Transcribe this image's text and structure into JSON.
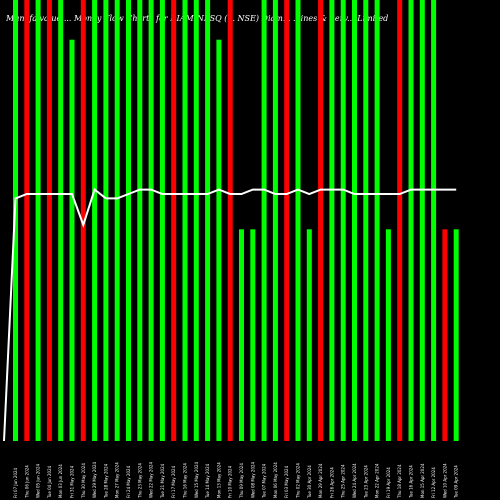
{
  "chart_data": {
    "type": "bar",
    "title": "Munafa value: 90 as on 08 Sun Dec 2024. Money Flow Charts for DIAMINESQ (Diamines & Chemicals Limited) NSE stock exchange",
    "title_display": "Munafa value ... Money Flow Charts for DIAMINESQ (... NSE) Diam... ...ines & Serv... Limited",
    "xlabel": "",
    "ylabel": "",
    "ylim": [
      0,
      100
    ],
    "grid": false,
    "legend": "none",
    "colors": {
      "up": "#00ff00",
      "down": "#ff0000",
      "line": "#ffffff",
      "background": "#000000"
    },
    "categories": [
      "Fri 07 Jun 2024",
      "Thu 06 Jun 2024",
      "Wed 05 Jun 2024",
      "Tue 04 Jun 2024",
      "Mon 03 Jun 2024",
      "Fri 31 May 2024",
      "Thu 30 May 2024",
      "Wed 29 May 2024",
      "Tue 28 May 2024",
      "Mon 27 May 2024",
      "Fri 24 May 2024",
      "Thu 23 May 2024",
      "Wed 22 May 2024",
      "Tue 21 May 2024",
      "Fri 17 May 2024",
      "Thu 16 May 2024",
      "Wed 15 May 2024",
      "Tue 14 May 2024",
      "Mon 13 May 2024",
      "Fri 10 May 2024",
      "Thu 09 May 2024",
      "Wed 08 May 2024",
      "Tue 07 May 2024",
      "Mon 06 May 2024",
      "Fri 03 May 2024",
      "Thu 02 May 2024",
      "Tue 30 Apr 2024",
      "Mon 29 Apr 2024",
      "Fri 26 Apr 2024",
      "Thu 25 Apr 2024",
      "Wed 24 Apr 2024",
      "Tue 23 Apr 2024",
      "Mon 22 Apr 2024",
      "Fri 19 Apr 2024",
      "Thu 18 Apr 2024",
      "Tue 16 Apr 2024",
      "Mon 15 Apr 2024",
      "Fri 12 Apr 2024",
      "Wed 10 Apr 2024",
      "Tue 09 Apr 2024"
    ],
    "tick_labels": [
      "Fri 07 Jun 2024",
      "Thu 06 Jun 2024",
      "Wed 05 Jun 2024",
      "Tue 04 Jun 2024",
      "Mon 03 Jun 2024",
      "Fri 31 May 2024",
      "Thu 30 May 2024",
      "Wed 29 May 2024",
      "Tue 28 May 2024",
      "Mon 27 May 2024",
      "Fri 24 May 2024",
      "Thu 23 May 2024",
      "Wed 22 May 2024",
      "Tue 21 May 2024",
      "Fri 17 May 2024",
      "Thu 16 May 2024",
      "Wed 15 May 2024",
      "Tue 14 May 2024",
      "Mon 13 May 2024",
      "Fri 10 May 2024",
      "Thu 09 May 2024",
      "Wed 08 May 2024",
      "Tue 07 May 2024",
      "Mon 06 May 2024",
      "Fri 03 May 2024",
      "Thu 02 May 2024",
      "Tue 30 Apr 2024",
      "Mon 29 Apr 2024",
      "Fri 26 Apr 2024",
      "Thu 25 Apr 2024",
      "Wed 24 Apr 2024",
      "Tue 23 Apr 2024",
      "Mon 22 Apr 2024",
      "Fri 19 Apr 2024",
      "Thu 18 Apr 2024",
      "Tue 16 Apr 2024",
      "Mon 15 Apr 2024",
      "Fri 12 Apr 2024",
      "Wed 10 Apr 2024",
      "Tue 09 Apr 2024"
    ],
    "series": [
      {
        "kind": "bars",
        "values": [
          100,
          100,
          100,
          100,
          100,
          91,
          100,
          100,
          100,
          100,
          100,
          100,
          100,
          100,
          100,
          100,
          100,
          100,
          91,
          100,
          100,
          100,
          100,
          100,
          100,
          100,
          100,
          100,
          100,
          100,
          100,
          100,
          100,
          100,
          100,
          100,
          100,
          100,
          100,
          100
        ],
        "direction": [
          "up",
          "down",
          "up",
          "down",
          "up",
          "up",
          "down",
          "up",
          "up",
          "up",
          "up",
          "up",
          "up",
          "up",
          "down",
          "up",
          "up",
          "up",
          "up",
          "down",
          "up",
          "up",
          "up",
          "up",
          "down",
          "up",
          "up",
          "down",
          "up",
          "up",
          "up",
          "up",
          "up",
          "up",
          "down",
          "up",
          "up",
          "up",
          "down",
          "up"
        ]
      },
      {
        "kind": "line",
        "values": [
          55,
          56,
          56,
          56,
          56,
          56,
          49,
          57,
          55,
          55,
          56,
          57,
          57,
          56,
          56,
          56,
          56,
          56,
          57,
          56,
          56,
          57,
          57,
          56,
          56,
          57,
          56,
          57,
          57,
          57,
          56,
          56,
          56,
          56,
          56,
          57,
          57,
          57,
          57,
          57
        ]
      }
    ],
    "bar_heights_short": {
      "20": 48,
      "21": 48,
      "26": 48,
      "33": 48,
      "38": 48,
      "39": 48
    }
  }
}
